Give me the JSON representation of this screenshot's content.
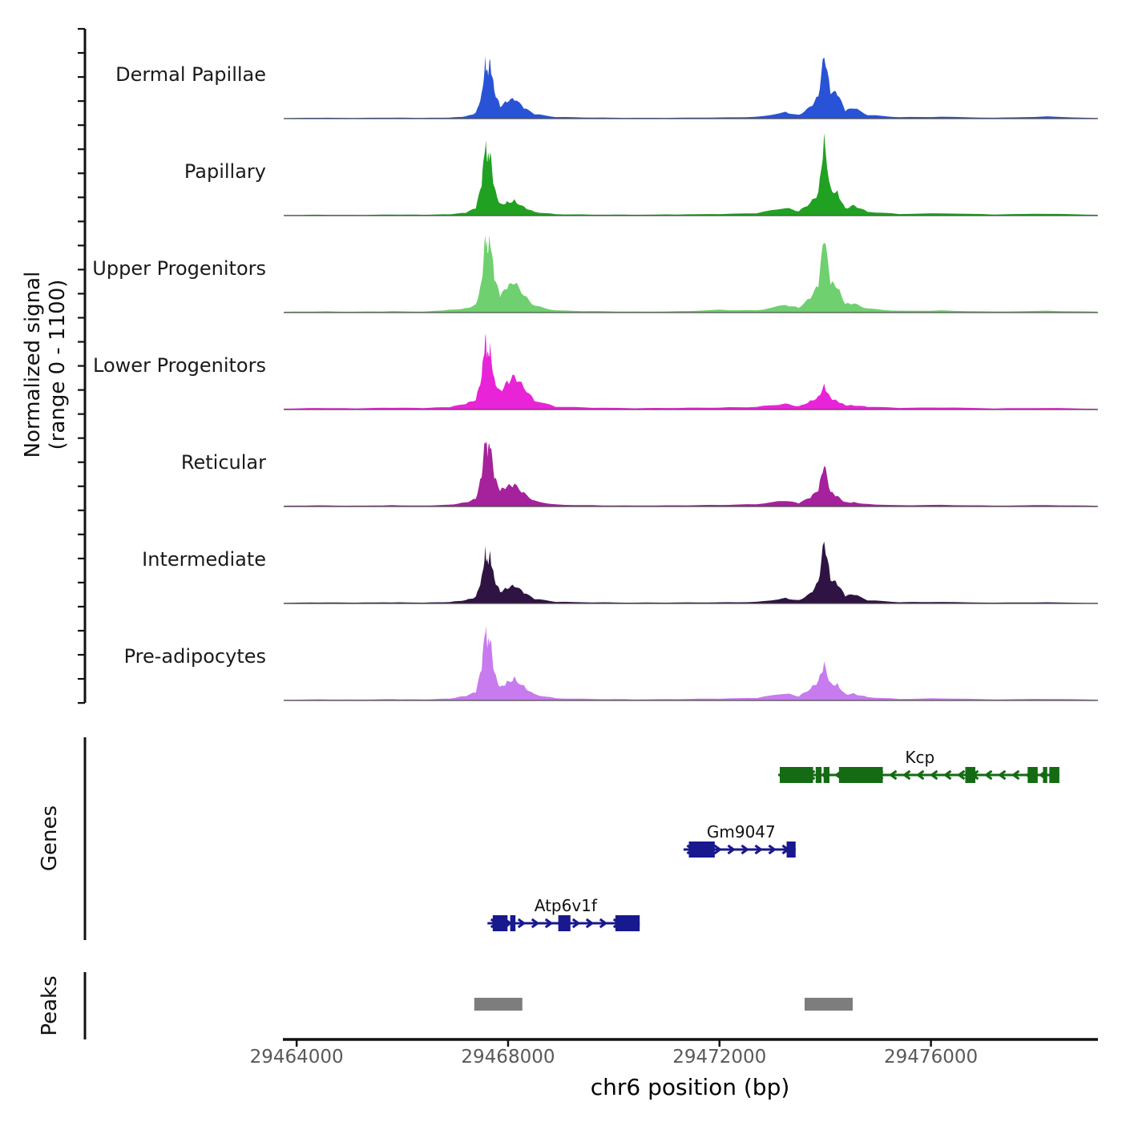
{
  "chart_data": {
    "type": "area",
    "title": "",
    "xlabel": "chr6 position (bp)",
    "ylabel_line1": "Normalized signal",
    "ylabel_line2": "(range 0 - 1100)",
    "chromosome": "chr6",
    "track_ylim": [
      0,
      1100
    ],
    "xlim": [
      29463740,
      29479160
    ],
    "x_ticks": [
      29464000,
      29468000,
      29472000,
      29476000
    ],
    "x_tick_labels": [
      "29464000",
      "29468000",
      "29472000",
      "29476000"
    ],
    "grid": false,
    "x": [
      29463760,
      29464400,
      29465100,
      29465800,
      29466400,
      29466900,
      29467200,
      29467390,
      29467500,
      29467570,
      29467610,
      29467660,
      29467740,
      29467850,
      29467980,
      29468120,
      29468300,
      29468500,
      29468900,
      29469600,
      29470400,
      29471200,
      29472000,
      29472700,
      29473250,
      29473500,
      29473720,
      29473870,
      29473980,
      29474100,
      29474230,
      29474380,
      29474540,
      29474800,
      29475400,
      29476200,
      29477200,
      29478200,
      29479150
    ],
    "series": [
      {
        "name": "Dermal Papillae",
        "color": "#2853d6",
        "values": [
          6,
          10,
          8,
          12,
          9,
          14,
          30,
          80,
          340,
          820,
          640,
          780,
          360,
          150,
          210,
          235,
          130,
          55,
          20,
          14,
          10,
          12,
          16,
          25,
          90,
          50,
          160,
          290,
          800,
          320,
          300,
          95,
          130,
          45,
          18,
          25,
          12,
          30,
          8
        ]
      },
      {
        "name": "Papillary",
        "color": "#21a121",
        "values": [
          8,
          12,
          9,
          14,
          10,
          16,
          35,
          90,
          380,
          890,
          700,
          830,
          380,
          160,
          190,
          215,
          120,
          50,
          18,
          12,
          10,
          14,
          18,
          28,
          95,
          55,
          170,
          310,
          1080,
          380,
          330,
          100,
          140,
          50,
          20,
          28,
          14,
          22,
          10
        ]
      },
      {
        "name": "Upper Progenitors",
        "color": "#6fd06f",
        "values": [
          10,
          15,
          12,
          18,
          14,
          40,
          60,
          110,
          420,
          1010,
          780,
          900,
          420,
          200,
          300,
          370,
          220,
          90,
          30,
          20,
          15,
          18,
          40,
          30,
          100,
          60,
          180,
          330,
          910,
          360,
          310,
          110,
          120,
          55,
          25,
          30,
          15,
          25,
          12
        ]
      },
      {
        "name": "Lower Progenitors",
        "color": "#e923d8",
        "values": [
          12,
          20,
          15,
          22,
          18,
          30,
          70,
          120,
          430,
          990,
          760,
          880,
          420,
          260,
          380,
          450,
          280,
          110,
          35,
          22,
          16,
          20,
          25,
          35,
          80,
          45,
          120,
          180,
          340,
          160,
          110,
          55,
          50,
          35,
          20,
          25,
          14,
          20,
          10
        ]
      },
      {
        "name": "Reticular",
        "color": "#a6219c",
        "values": [
          10,
          16,
          12,
          18,
          14,
          25,
          55,
          100,
          380,
          820,
          640,
          750,
          360,
          200,
          260,
          300,
          190,
          80,
          28,
          18,
          14,
          16,
          20,
          28,
          70,
          40,
          110,
          200,
          530,
          190,
          140,
          60,
          60,
          35,
          18,
          22,
          12,
          18,
          9
        ]
      },
      {
        "name": "Intermediate",
        "color": "#2f1342",
        "values": [
          8,
          12,
          10,
          14,
          11,
          18,
          45,
          90,
          360,
          755,
          590,
          690,
          330,
          150,
          190,
          215,
          130,
          55,
          20,
          14,
          11,
          13,
          16,
          22,
          75,
          45,
          140,
          290,
          810,
          300,
          235,
          90,
          110,
          40,
          16,
          20,
          11,
          16,
          8
        ]
      },
      {
        "name": "Pre-adipocytes",
        "color": "#c77bee",
        "values": [
          10,
          16,
          12,
          18,
          14,
          24,
          55,
          100,
          390,
          880,
          680,
          790,
          370,
          180,
          260,
          320,
          200,
          85,
          30,
          20,
          14,
          17,
          22,
          30,
          85,
          50,
          150,
          260,
          510,
          240,
          230,
          90,
          95,
          45,
          20,
          26,
          13,
          20,
          10
        ]
      }
    ],
    "genes": {
      "label": "Genes",
      "items": [
        {
          "name": "Kcp",
          "strand": "-",
          "color": "#146b14",
          "start": 29473110,
          "end": 29478430,
          "label_bp": 29475790,
          "exons": [
            [
              29473140,
              29473770
            ],
            [
              29473820,
              29473930
            ],
            [
              29473970,
              29474080
            ],
            [
              29474260,
              29475090
            ],
            [
              29476650,
              29476840
            ],
            [
              29477830,
              29478020
            ],
            [
              29478120,
              29478200
            ],
            [
              29478240,
              29478430
            ]
          ]
        },
        {
          "name": "Gm9047",
          "strand": "+",
          "color": "#18188f",
          "start": 29471320,
          "end": 29473440,
          "label_bp": 29472410,
          "exons": [
            [
              29471420,
              29471910
            ],
            [
              29473270,
              29473440
            ]
          ]
        },
        {
          "name": "Atp6v1f",
          "strand": "+",
          "color": "#18188f",
          "start": 29467610,
          "end": 29470490,
          "label_bp": 29469090,
          "exons": [
            [
              29467710,
              29467990
            ],
            [
              29468040,
              29468140
            ],
            [
              29468950,
              29469180
            ],
            [
              29470030,
              29470490
            ]
          ]
        }
      ]
    },
    "peaks": {
      "label": "Peaks",
      "color": "#7d7d7d",
      "regions": [
        [
          29467360,
          29468270
        ],
        [
          29473610,
          29474520
        ]
      ]
    }
  }
}
